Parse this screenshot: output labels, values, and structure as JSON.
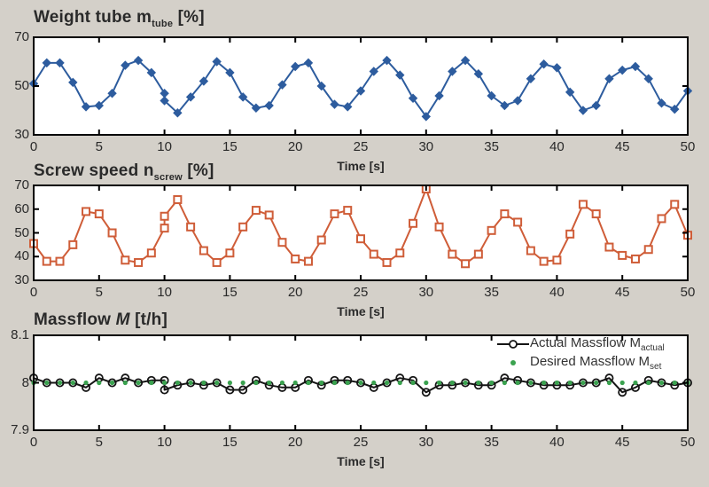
{
  "figure": {
    "background_color": "#d4d0c9",
    "plot_background": "#ffffff",
    "axis_color": "#000000",
    "text_color": "#2a2a2a",
    "time_axis_label": "Time [s]"
  },
  "chart_data": [
    {
      "type": "line",
      "title_main": "Weight tube m",
      "title_sub": "tube",
      "title_unit": " [%]",
      "xlabel": "Time [s]",
      "xlim": [
        0,
        50
      ],
      "ylim": [
        30,
        70
      ],
      "xticks": [
        0,
        5,
        10,
        15,
        20,
        25,
        30,
        35,
        40,
        45,
        50
      ],
      "yticks": [
        {
          "v": 70,
          "label": "70"
        },
        {
          "v": 50,
          "label": "50"
        },
        {
          "v": 30,
          "label": "30"
        }
      ],
      "grid": false,
      "series": [
        {
          "name": "Weight tube",
          "color": "#2d5c9e",
          "marker": "diamond",
          "x": [
            0,
            1,
            2,
            3,
            4,
            5,
            6,
            7,
            8,
            9,
            10,
            10,
            11,
            12,
            13,
            14,
            15,
            16,
            17,
            18,
            19,
            20,
            21,
            22,
            23,
            24,
            25,
            26,
            27,
            28,
            29,
            30,
            31,
            32,
            33,
            34,
            35,
            36,
            37,
            38,
            39,
            40,
            41,
            42,
            43,
            44,
            45,
            46,
            47,
            48,
            49,
            50
          ],
          "y": [
            51,
            59.5,
            59.5,
            51.5,
            41.5,
            42,
            47,
            58.5,
            60.5,
            55.5,
            47,
            44,
            39,
            45.5,
            52,
            60,
            55.5,
            45.5,
            41,
            42,
            50.5,
            58,
            59.5,
            50,
            42.5,
            41.5,
            48,
            56,
            60.5,
            54.5,
            45,
            37.5,
            46,
            56,
            60.5,
            55,
            46,
            42,
            44,
            53,
            59,
            57.5,
            47.5,
            40,
            42,
            53,
            56.5,
            58,
            53,
            43,
            40.5,
            48
          ]
        }
      ]
    },
    {
      "type": "line",
      "title_main": "Screw speed n",
      "title_sub": "screw",
      "title_unit": " [%]",
      "xlabel": "Time [s]",
      "xlim": [
        0,
        50
      ],
      "ylim": [
        30,
        70
      ],
      "xticks": [
        0,
        5,
        10,
        15,
        20,
        25,
        30,
        35,
        40,
        45,
        50
      ],
      "yticks": [
        {
          "v": 70,
          "label": "70"
        },
        {
          "v": 60,
          "label": "60"
        },
        {
          "v": 50,
          "label": "50"
        },
        {
          "v": 40,
          "label": "40"
        },
        {
          "v": 30,
          "label": "30"
        }
      ],
      "grid": false,
      "series": [
        {
          "name": "Screw speed",
          "color": "#cf5d38",
          "marker": "square",
          "x": [
            0,
            1,
            2,
            3,
            4,
            5,
            6,
            7,
            8,
            9,
            10,
            10,
            11,
            12,
            13,
            14,
            15,
            16,
            17,
            18,
            19,
            20,
            21,
            22,
            23,
            24,
            25,
            26,
            27,
            28,
            29,
            30,
            31,
            32,
            33,
            34,
            35,
            36,
            37,
            38,
            39,
            40,
            41,
            42,
            43,
            44,
            45,
            46,
            47,
            48,
            49,
            50
          ],
          "y": [
            45.5,
            38,
            38,
            45,
            59,
            58,
            50,
            38.5,
            37.5,
            41.5,
            52,
            57,
            64,
            52.5,
            42.5,
            37.5,
            41.5,
            52.5,
            59.5,
            57.5,
            46,
            39,
            38,
            47,
            58,
            59.5,
            47.5,
            41,
            37.5,
            41.5,
            54,
            68.5,
            52.5,
            41,
            37,
            41,
            51,
            58,
            54.5,
            42.5,
            38,
            38.5,
            49.5,
            62,
            58,
            44,
            40.5,
            39,
            43,
            56,
            62,
            49
          ]
        }
      ]
    },
    {
      "type": "line",
      "title_main": "Massflow ",
      "title_var": "M",
      "title_unit": " [t/h]",
      "xlabel": "Time [s]",
      "xlim": [
        0,
        50
      ],
      "ylim": [
        7.9,
        8.1
      ],
      "xticks": [
        0,
        5,
        10,
        15,
        20,
        25,
        30,
        35,
        40,
        45,
        50
      ],
      "yticks": [
        {
          "v": 8.1,
          "label": "8.1"
        },
        {
          "v": 8,
          "label": "8"
        },
        {
          "v": 7.9,
          "label": "7.9"
        }
      ],
      "grid": false,
      "legend_position": "top-right",
      "series": [
        {
          "label": "Actual Massflow M",
          "label_sub": "actual",
          "color": "#151515",
          "marker": "circle",
          "x": [
            0,
            1,
            2,
            3,
            4,
            5,
            6,
            7,
            8,
            9,
            10,
            10,
            11,
            12,
            13,
            14,
            15,
            16,
            17,
            18,
            19,
            20,
            21,
            22,
            23,
            24,
            25,
            26,
            27,
            28,
            29,
            30,
            31,
            32,
            33,
            34,
            35,
            36,
            37,
            38,
            39,
            40,
            41,
            42,
            43,
            44,
            45,
            46,
            47,
            48,
            49,
            50
          ],
          "y": [
            8.01,
            8,
            8,
            8,
            7.99,
            8.01,
            8,
            8.01,
            8,
            8.005,
            8.005,
            7.985,
            7.995,
            8,
            7.995,
            8,
            7.985,
            7.985,
            8.005,
            7.995,
            7.99,
            7.99,
            8.005,
            7.995,
            8.005,
            8.005,
            8,
            7.99,
            8,
            8.01,
            8.005,
            7.98,
            7.995,
            7.995,
            8,
            7.995,
            7.995,
            8.01,
            8.005,
            8,
            7.995,
            7.995,
            7.995,
            8,
            8,
            8.01,
            7.98,
            7.99,
            8.005,
            8,
            7.995,
            8
          ]
        },
        {
          "label": "Desired Massflow M",
          "label_sub": "set",
          "color": "#3aa24f",
          "marker": "dot",
          "line": false,
          "x": [
            0,
            1,
            2,
            3,
            4,
            5,
            6,
            7,
            8,
            9,
            10,
            11,
            12,
            13,
            14,
            15,
            16,
            17,
            18,
            19,
            20,
            21,
            22,
            23,
            24,
            25,
            26,
            27,
            28,
            29,
            30,
            31,
            32,
            33,
            34,
            35,
            36,
            37,
            38,
            39,
            40,
            41,
            42,
            43,
            44,
            45,
            46,
            47,
            48,
            49,
            50
          ],
          "y": [
            8,
            8,
            8,
            8,
            8,
            8,
            8,
            8,
            8,
            8,
            8,
            8,
            8,
            8,
            8,
            8,
            8,
            8,
            8,
            8,
            8,
            8,
            8,
            8,
            8,
            8,
            8,
            8,
            8,
            8,
            8,
            8,
            8,
            8,
            8,
            8,
            8,
            8,
            8,
            8,
            8,
            8,
            8,
            8,
            8,
            8,
            8,
            8,
            8,
            8,
            8
          ]
        }
      ]
    }
  ]
}
